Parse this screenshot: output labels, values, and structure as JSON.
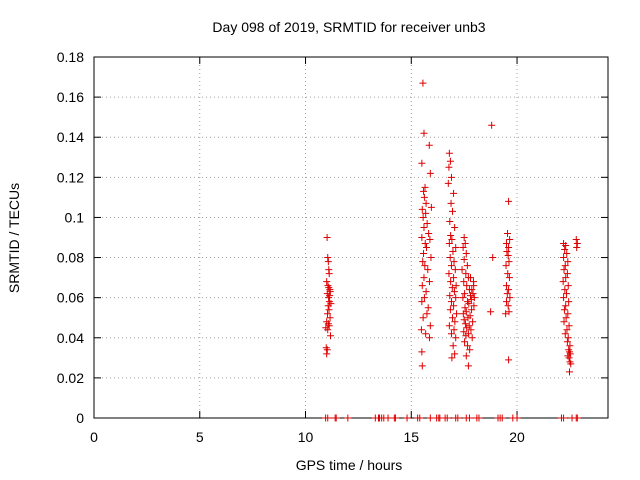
{
  "chart_data": {
    "type": "scatter",
    "title": "Day 098 of 2019, SRMTID for receiver unb3",
    "xlabel": "GPS time / hours",
    "ylabel": "SRMTID / TECUs",
    "xlim": [
      0,
      24.3
    ],
    "ylim": [
      0,
      0.18
    ],
    "xticks": [
      0,
      5,
      10,
      15,
      20
    ],
    "yticks": [
      0,
      0.02,
      0.04,
      0.06,
      0.08,
      0.1,
      0.12,
      0.14,
      0.16,
      0.18
    ],
    "xtick_labels": [
      "0",
      "5",
      "10",
      "15",
      "20"
    ],
    "ytick_labels": [
      "0",
      "0.02",
      "0.04",
      "0.06",
      "0.08",
      "0.1",
      "0.12",
      "0.14",
      "0.16",
      "0.18"
    ],
    "grid": true,
    "marker": "+",
    "color": "#dd0000",
    "series": [
      {
        "name": "SRMTID",
        "points": [
          [
            11.02,
            0.09
          ],
          [
            11.05,
            0.08
          ],
          [
            11.08,
            0.078
          ],
          [
            11.1,
            0.074
          ],
          [
            11.12,
            0.072
          ],
          [
            11.0,
            0.068
          ],
          [
            11.06,
            0.066
          ],
          [
            11.15,
            0.064
          ],
          [
            11.03,
            0.062
          ],
          [
            11.09,
            0.06
          ],
          [
            11.13,
            0.058
          ],
          [
            11.07,
            0.056
          ],
          [
            11.11,
            0.054
          ],
          [
            11.04,
            0.052
          ],
          [
            11.16,
            0.05
          ],
          [
            11.0,
            0.048
          ],
          [
            11.08,
            0.047
          ],
          [
            11.12,
            0.046
          ],
          [
            11.05,
            0.044
          ],
          [
            11.18,
            0.041
          ],
          [
            10.98,
            0.035
          ],
          [
            11.03,
            0.034
          ],
          [
            11.0,
            0.032
          ],
          [
            11.14,
            0.061
          ],
          [
            11.17,
            0.063
          ],
          [
            11.1,
            0.065
          ],
          [
            10.96,
            0.045
          ],
          [
            11.2,
            0.057
          ],
          [
            15.55,
            0.167
          ],
          [
            15.6,
            0.142
          ],
          [
            15.85,
            0.136
          ],
          [
            15.5,
            0.127
          ],
          [
            15.9,
            0.122
          ],
          [
            15.65,
            0.115
          ],
          [
            15.58,
            0.113
          ],
          [
            15.62,
            0.11
          ],
          [
            15.7,
            0.107
          ],
          [
            15.95,
            0.105
          ],
          [
            15.52,
            0.104
          ],
          [
            15.68,
            0.102
          ],
          [
            15.56,
            0.1
          ],
          [
            15.75,
            0.097
          ],
          [
            15.6,
            0.095
          ],
          [
            15.82,
            0.092
          ],
          [
            15.5,
            0.09
          ],
          [
            15.88,
            0.089
          ],
          [
            15.66,
            0.087
          ],
          [
            15.72,
            0.085
          ],
          [
            15.58,
            0.082
          ],
          [
            15.93,
            0.08
          ],
          [
            15.54,
            0.078
          ],
          [
            15.64,
            0.076
          ],
          [
            15.78,
            0.074
          ],
          [
            15.6,
            0.07
          ],
          [
            15.86,
            0.068
          ],
          [
            15.52,
            0.066
          ],
          [
            15.7,
            0.063
          ],
          [
            15.62,
            0.06
          ],
          [
            15.5,
            0.058
          ],
          [
            15.8,
            0.055
          ],
          [
            15.56,
            0.05
          ],
          [
            15.9,
            0.046
          ],
          [
            15.48,
            0.044
          ],
          [
            15.68,
            0.042
          ],
          [
            15.86,
            0.04
          ],
          [
            15.5,
            0.033
          ],
          [
            15.52,
            0.026
          ],
          [
            15.74,
            0.052
          ],
          [
            16.8,
            0.132
          ],
          [
            16.85,
            0.128
          ],
          [
            16.78,
            0.125
          ],
          [
            16.9,
            0.12
          ],
          [
            16.75,
            0.117
          ],
          [
            17.0,
            0.112
          ],
          [
            16.88,
            0.107
          ],
          [
            16.95,
            0.103
          ],
          [
            16.82,
            0.098
          ],
          [
            17.05,
            0.095
          ],
          [
            16.86,
            0.091
          ],
          [
            16.92,
            0.089
          ],
          [
            16.8,
            0.087
          ],
          [
            17.1,
            0.085
          ],
          [
            16.97,
            0.083
          ],
          [
            16.84,
            0.08
          ],
          [
            17.02,
            0.078
          ],
          [
            16.9,
            0.076
          ],
          [
            17.08,
            0.074
          ],
          [
            16.78,
            0.072
          ],
          [
            17.0,
            0.07
          ],
          [
            16.86,
            0.068
          ],
          [
            17.12,
            0.066
          ],
          [
            16.94,
            0.065
          ],
          [
            17.04,
            0.063
          ],
          [
            16.82,
            0.061
          ],
          [
            17.1,
            0.06
          ],
          [
            16.9,
            0.058
          ],
          [
            17.0,
            0.056
          ],
          [
            16.85,
            0.054
          ],
          [
            17.14,
            0.052
          ],
          [
            16.95,
            0.05
          ],
          [
            17.06,
            0.048
          ],
          [
            16.8,
            0.046
          ],
          [
            17.02,
            0.044
          ],
          [
            16.9,
            0.042
          ],
          [
            17.1,
            0.04
          ],
          [
            16.98,
            0.036
          ],
          [
            17.05,
            0.032
          ],
          [
            16.92,
            0.03
          ],
          [
            17.5,
            0.09
          ],
          [
            17.55,
            0.087
          ],
          [
            17.45,
            0.085
          ],
          [
            17.6,
            0.082
          ],
          [
            17.5,
            0.079
          ],
          [
            17.65,
            0.076
          ],
          [
            17.4,
            0.074
          ],
          [
            17.58,
            0.072
          ],
          [
            17.7,
            0.07
          ],
          [
            17.48,
            0.068
          ],
          [
            17.62,
            0.066
          ],
          [
            17.75,
            0.064
          ],
          [
            17.52,
            0.062
          ],
          [
            17.8,
            0.061
          ],
          [
            17.44,
            0.06
          ],
          [
            17.66,
            0.058
          ],
          [
            17.72,
            0.057
          ],
          [
            17.54,
            0.055
          ],
          [
            17.85,
            0.054
          ],
          [
            17.6,
            0.053
          ],
          [
            17.46,
            0.052
          ],
          [
            17.78,
            0.051
          ],
          [
            17.68,
            0.05
          ],
          [
            17.5,
            0.049
          ],
          [
            17.9,
            0.048
          ],
          [
            17.56,
            0.047
          ],
          [
            17.74,
            0.046
          ],
          [
            17.62,
            0.045
          ],
          [
            17.82,
            0.044
          ],
          [
            17.48,
            0.043
          ],
          [
            17.7,
            0.042
          ],
          [
            17.58,
            0.041
          ],
          [
            17.88,
            0.04
          ],
          [
            17.52,
            0.038
          ],
          [
            17.66,
            0.036
          ],
          [
            17.76,
            0.034
          ],
          [
            17.6,
            0.031
          ],
          [
            17.7,
            0.026
          ],
          [
            17.95,
            0.066
          ],
          [
            17.92,
            0.062
          ],
          [
            17.84,
            0.059
          ],
          [
            17.96,
            0.056
          ],
          [
            17.8,
            0.07
          ],
          [
            17.94,
            0.068
          ],
          [
            17.86,
            0.064
          ],
          [
            17.98,
            0.06
          ],
          [
            18.8,
            0.146
          ],
          [
            18.85,
            0.08
          ],
          [
            18.75,
            0.053
          ],
          [
            19.6,
            0.108
          ],
          [
            19.55,
            0.092
          ],
          [
            19.65,
            0.089
          ],
          [
            19.5,
            0.087
          ],
          [
            19.6,
            0.085
          ],
          [
            19.52,
            0.083
          ],
          [
            19.58,
            0.081
          ],
          [
            19.62,
            0.078
          ],
          [
            19.48,
            0.076
          ],
          [
            19.56,
            0.072
          ],
          [
            19.64,
            0.07
          ],
          [
            19.5,
            0.066
          ],
          [
            19.6,
            0.064
          ],
          [
            19.54,
            0.062
          ],
          [
            19.66,
            0.06
          ],
          [
            19.5,
            0.058
          ],
          [
            19.58,
            0.056
          ],
          [
            19.62,
            0.053
          ],
          [
            19.46,
            0.052
          ],
          [
            19.6,
            0.029
          ],
          [
            22.2,
            0.087
          ],
          [
            22.3,
            0.086
          ],
          [
            22.25,
            0.084
          ],
          [
            22.35,
            0.082
          ],
          [
            22.2,
            0.08
          ],
          [
            22.4,
            0.078
          ],
          [
            22.28,
            0.076
          ],
          [
            22.22,
            0.074
          ],
          [
            22.38,
            0.072
          ],
          [
            22.3,
            0.07
          ],
          [
            22.18,
            0.068
          ],
          [
            22.42,
            0.066
          ],
          [
            22.26,
            0.064
          ],
          [
            22.34,
            0.062
          ],
          [
            22.2,
            0.06
          ],
          [
            22.44,
            0.058
          ],
          [
            22.3,
            0.056
          ],
          [
            22.24,
            0.054
          ],
          [
            22.4,
            0.052
          ],
          [
            22.32,
            0.05
          ],
          [
            22.22,
            0.048
          ],
          [
            22.46,
            0.046
          ],
          [
            22.36,
            0.044
          ],
          [
            22.28,
            0.042
          ],
          [
            22.42,
            0.04
          ],
          [
            22.38,
            0.038
          ],
          [
            22.5,
            0.036
          ],
          [
            22.44,
            0.034
          ],
          [
            22.48,
            0.033
          ],
          [
            22.52,
            0.032
          ],
          [
            22.4,
            0.031
          ],
          [
            22.46,
            0.03
          ],
          [
            22.5,
            0.028
          ],
          [
            22.54,
            0.027
          ],
          [
            22.48,
            0.023
          ],
          [
            22.8,
            0.089
          ],
          [
            22.85,
            0.087
          ],
          [
            22.82,
            0.085
          ],
          [
            10.95,
            0
          ],
          [
            11.05,
            0
          ],
          [
            11.4,
            0
          ],
          [
            11.45,
            0
          ],
          [
            12.0,
            0
          ],
          [
            13.3,
            0
          ],
          [
            13.45,
            0
          ],
          [
            13.5,
            0
          ],
          [
            13.6,
            0
          ],
          [
            13.7,
            0
          ],
          [
            13.9,
            0
          ],
          [
            14.2,
            0
          ],
          [
            14.25,
            0
          ],
          [
            14.8,
            0
          ],
          [
            15.3,
            0
          ],
          [
            15.4,
            0
          ],
          [
            15.9,
            0
          ],
          [
            16.2,
            0
          ],
          [
            16.3,
            0
          ],
          [
            16.35,
            0
          ],
          [
            16.6,
            0
          ],
          [
            16.7,
            0
          ],
          [
            17.1,
            0
          ],
          [
            17.2,
            0
          ],
          [
            17.6,
            0
          ],
          [
            17.75,
            0
          ],
          [
            18.1,
            0
          ],
          [
            18.2,
            0
          ],
          [
            19.1,
            0
          ],
          [
            19.2,
            0
          ],
          [
            19.3,
            0
          ],
          [
            19.8,
            0
          ],
          [
            20.0,
            0
          ],
          [
            22.1,
            0
          ],
          [
            22.2,
            0
          ],
          [
            22.6,
            0
          ],
          [
            22.8,
            0
          ],
          [
            22.85,
            0
          ]
        ]
      }
    ]
  }
}
